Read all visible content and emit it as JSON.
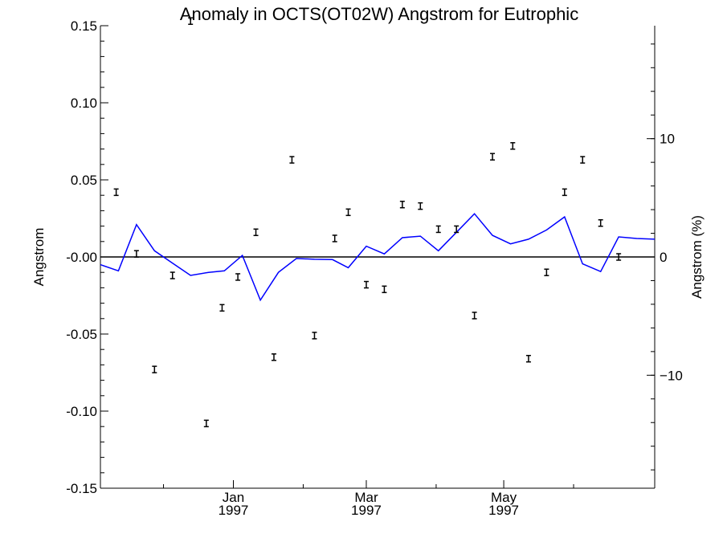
{
  "chart_data": {
    "type": "line",
    "title": "Anomaly in OCTS(OT02W) Angstrom for Eutrophic",
    "ylabel": "Angstrom",
    "y2label": "Angstrom (%)",
    "ylim": [
      -0.15,
      0.15
    ],
    "y2lim": [
      -19.55,
      19.55
    ],
    "y_ticks": [
      "0.15",
      "0.10",
      "0.05",
      "-0.00",
      "-0.05",
      "-0.10",
      "-0.15"
    ],
    "y2_ticks": [
      "10",
      "0",
      "-10"
    ],
    "x_ticks": [
      {
        "month": "Jan",
        "year": "1997"
      },
      {
        "month": "Mar",
        "year": "1997"
      },
      {
        "month": "May",
        "year": "1997"
      }
    ],
    "x_tick_days": [
      0,
      59,
      120
    ],
    "xlim_days": [
      -59,
      187
    ],
    "zero_line": true,
    "series": [
      {
        "kind": "line",
        "color": "#0000ff",
        "x_days": [
          -59,
          -51,
          -43,
          -35,
          -27,
          -19,
          -11,
          -4,
          4,
          12,
          20,
          28,
          36,
          44,
          51,
          59,
          67,
          75,
          83,
          91,
          99,
          107,
          115,
          123,
          131,
          139,
          147,
          155,
          163,
          171,
          179,
          187
        ],
        "y": [
          -0.005,
          -0.009,
          0.021,
          0.004,
          -0.004,
          -0.012,
          -0.01,
          -0.009,
          0.001,
          -0.028,
          -0.01,
          -0.001,
          -0.0015,
          -0.0017,
          -0.007,
          0.007,
          0.002,
          0.0125,
          0.0135,
          0.004,
          0.016,
          0.028,
          0.014,
          0.0085,
          0.0115,
          0.0175,
          0.026,
          -0.0045,
          -0.0095,
          0.013,
          0.012,
          0.0115
        ]
      },
      {
        "kind": "errorbar",
        "color": "#000000",
        "x_days": [
          -52,
          -43,
          -35,
          -27,
          -19,
          -12,
          -5,
          2,
          10,
          18,
          26,
          36,
          45,
          51,
          59,
          67,
          75,
          83,
          91,
          99,
          107,
          115,
          124,
          131,
          139,
          147,
          155,
          163,
          171
        ],
        "y": [
          0.042,
          0.002,
          -0.073,
          -0.012,
          0.153,
          -0.108,
          -0.033,
          -0.013,
          0.016,
          -0.065,
          0.063,
          -0.051,
          0.012,
          0.029,
          -0.018,
          -0.021,
          0.034,
          0.033,
          0.018,
          0.018,
          -0.038,
          0.065,
          0.072,
          -0.066,
          -0.01,
          0.042,
          0.063,
          0.022,
          0.0
        ]
      }
    ]
  }
}
